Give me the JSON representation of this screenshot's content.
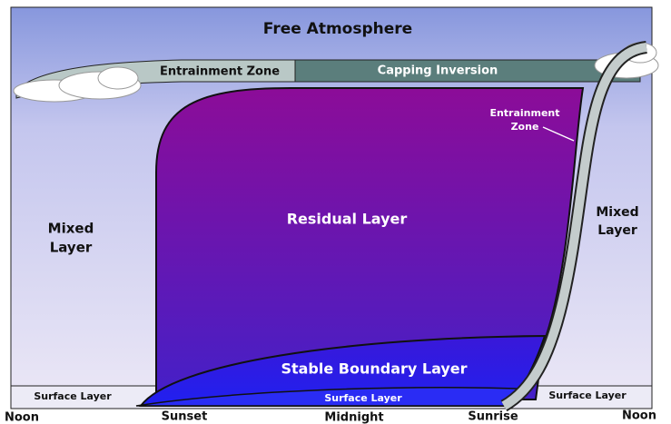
{
  "title": "Free Atmosphere",
  "labels": {
    "entrainment_zone_top": "Entrainment Zone",
    "capping_inversion": "Capping Inversion",
    "entrainment_zone_right": [
      "Entrainment",
      "Zone"
    ],
    "mixed_layer_left": [
      "Mixed",
      "Layer"
    ],
    "residual_layer": "Residual Layer",
    "mixed_layer_right": [
      "Mixed",
      "Layer"
    ],
    "stable_boundary_layer": "Stable Boundary Layer",
    "surface_layer_left": "Surface Layer",
    "surface_layer_middle": "Surface Layer",
    "surface_layer_right": "Surface Layer"
  },
  "time_axis": [
    "Noon",
    "Sunset",
    "Midnight",
    "Sunrise",
    "Noon"
  ]
}
